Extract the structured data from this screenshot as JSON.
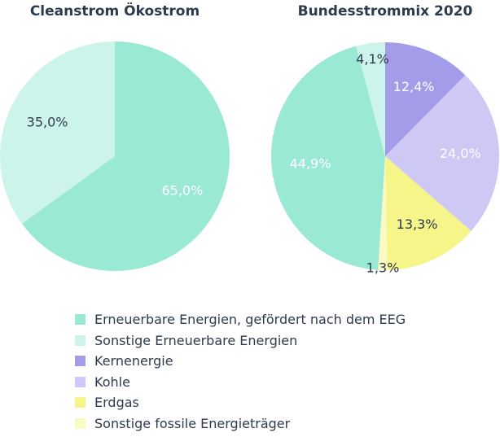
{
  "chart_data": [
    {
      "type": "pie",
      "title": "Cleanstrom Ökostrom",
      "slices": [
        {
          "category": "Erneuerbare Energien, gefördert nach dem EEG",
          "value": 65.0,
          "label": "65,0%",
          "color": "#9ae9d4",
          "label_color": "#ffffff"
        },
        {
          "category": "Sonstige Erneuerbare Energien",
          "value": 35.0,
          "label": "35,0%",
          "color": "#cdf4ea",
          "label_color": "#2e3a4e"
        }
      ]
    },
    {
      "type": "pie",
      "title": "Bundesstrommix 2020",
      "slices": [
        {
          "category": "Kernenergie",
          "value": 12.4,
          "label": "12,4%",
          "color": "#a39ce9",
          "label_color": "#ffffff"
        },
        {
          "category": "Kohle",
          "value": 24.0,
          "label": "24,0%",
          "color": "#cdc9f4",
          "label_color": "#ffffff"
        },
        {
          "category": "Erdgas",
          "value": 13.3,
          "label": "13,3%",
          "color": "#f5f589",
          "label_color": "#2e3a4e"
        },
        {
          "category": "Sonstige fossile Energieträger",
          "value": 1.3,
          "label": "1,3%",
          "color": "#fafac4",
          "label_color": "#2e3a4e"
        },
        {
          "category": "Erneuerbare Energien, gefördert nach dem EEG",
          "value": 44.9,
          "label": "44,9%",
          "color": "#9ae9d4",
          "label_color": "#ffffff"
        },
        {
          "category": "Sonstige Erneuerbare Energien",
          "value": 4.1,
          "label": "4,1%",
          "color": "#cdf4ea",
          "label_color": "#2e3a4e"
        }
      ]
    }
  ],
  "legend": {
    "placement": "bottom",
    "items": [
      {
        "label": "Erneuerbare Energien, gefördert nach dem EEG",
        "color": "#9ae9d4"
      },
      {
        "label": "Sonstige Erneuerbare Energien",
        "color": "#cdf4ea"
      },
      {
        "label": "Kernenergie",
        "color": "#a39ce9"
      },
      {
        "label": "Kohle",
        "color": "#cdc9f4"
      },
      {
        "label": "Erdgas",
        "color": "#f5f589"
      },
      {
        "label": "Sonstige fossile Energieträger",
        "color": "#fafac4"
      }
    ]
  }
}
